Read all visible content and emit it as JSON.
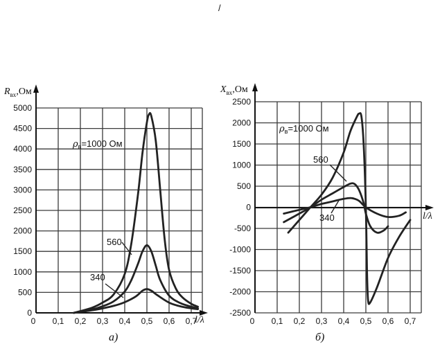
{
  "stray_mark": "/",
  "chart_data": [
    {
      "type": "line",
      "caption": "а)",
      "ylabel": "R",
      "ylabel_sub": "вх",
      "ylabel_unit": ",Ом",
      "xlabel": "l/λ",
      "xlim": [
        0,
        0.75
      ],
      "ylim": [
        0,
        5000
      ],
      "x_ticks": [
        "0",
        "0,1",
        "0,2",
        "0,3",
        "0,4",
        "0,5",
        "0,6",
        "0,7"
      ],
      "y_ticks": [
        "0",
        "500",
        "1000",
        "1500",
        "2000",
        "2500",
        "3000",
        "3500",
        "4000",
        "4500",
        "5000"
      ],
      "grid": true,
      "annotations": [
        {
          "text_rho": "ρ",
          "text_sub": "в",
          "text": "=1000 Ом",
          "series": "1000"
        },
        {
          "text": "560",
          "series": "560"
        },
        {
          "text": "340",
          "series": "340"
        }
      ],
      "series": [
        {
          "name": "ρв=1000 Ом",
          "key": "1000",
          "x": [
            0.17,
            0.25,
            0.3,
            0.35,
            0.4,
            0.43,
            0.46,
            0.48,
            0.5,
            0.51,
            0.52,
            0.54,
            0.56,
            0.58,
            0.6,
            0.63,
            0.66,
            0.7,
            0.73
          ],
          "y": [
            0,
            120,
            250,
            450,
            950,
            1700,
            2900,
            3900,
            4650,
            4850,
            4800,
            4200,
            3000,
            1800,
            1050,
            600,
            380,
            220,
            150
          ]
        },
        {
          "name": "560",
          "key": "560",
          "x": [
            0.17,
            0.25,
            0.3,
            0.35,
            0.4,
            0.43,
            0.46,
            0.48,
            0.5,
            0.52,
            0.54,
            0.56,
            0.6,
            0.65,
            0.7,
            0.73
          ],
          "y": [
            0,
            80,
            160,
            280,
            520,
            800,
            1200,
            1500,
            1650,
            1500,
            1150,
            800,
            420,
            240,
            150,
            110
          ]
        },
        {
          "name": "340",
          "key": "340",
          "x": [
            0.17,
            0.25,
            0.3,
            0.35,
            0.4,
            0.45,
            0.48,
            0.5,
            0.52,
            0.55,
            0.6,
            0.65,
            0.7,
            0.73
          ],
          "y": [
            0,
            60,
            110,
            170,
            260,
            400,
            540,
            580,
            540,
            420,
            250,
            160,
            110,
            90
          ]
        }
      ]
    },
    {
      "type": "line",
      "caption": "б)",
      "ylabel": "X",
      "ylabel_sub": "вх",
      "ylabel_unit": ",Ом",
      "xlabel": "l/λ",
      "xlim": [
        0,
        0.75
      ],
      "ylim": [
        -2500,
        2500
      ],
      "x_ticks": [
        "0",
        "0,1",
        "0,2",
        "0,3",
        "0,4",
        "0,5",
        "0,6",
        "0,7"
      ],
      "y_ticks": [
        "-2500",
        "-2000",
        "-1500",
        "-1000",
        "-500",
        "0",
        "500",
        "1000",
        "1500",
        "2000",
        "2500"
      ],
      "grid": true,
      "annotations": [
        {
          "text_rho": "ρ",
          "text_sub": "в",
          "text": "=1000 Ом",
          "series": "1000"
        },
        {
          "text": "560",
          "series": "560"
        },
        {
          "text": "340",
          "series": "340"
        }
      ],
      "series": [
        {
          "name": "ρв=1000 Ом",
          "key": "1000",
          "x": [
            0.15,
            0.2,
            0.25,
            0.3,
            0.35,
            0.4,
            0.43,
            0.46,
            0.47,
            0.48,
            0.49,
            0.5,
            0.505,
            0.51,
            0.52,
            0.55,
            0.6,
            0.65,
            0.7
          ],
          "y": [
            -600,
            -300,
            0,
            300,
            700,
            1300,
            1800,
            2150,
            2220,
            2150,
            1500,
            0,
            -1500,
            -2200,
            -2250,
            -1900,
            -1200,
            -700,
            -300
          ]
        },
        {
          "name": "560",
          "key": "560",
          "x": [
            0.13,
            0.2,
            0.25,
            0.3,
            0.35,
            0.4,
            0.43,
            0.45,
            0.47,
            0.49,
            0.5,
            0.52,
            0.55,
            0.58,
            0.6
          ],
          "y": [
            -350,
            -150,
            0,
            180,
            330,
            480,
            560,
            550,
            400,
            100,
            -150,
            -450,
            -600,
            -550,
            -450
          ]
        },
        {
          "name": "340",
          "key": "340",
          "x": [
            0.13,
            0.2,
            0.25,
            0.3,
            0.35,
            0.4,
            0.43,
            0.45,
            0.47,
            0.5,
            0.55,
            0.6,
            0.65,
            0.68
          ],
          "y": [
            -150,
            -60,
            0,
            80,
            140,
            200,
            220,
            200,
            150,
            0,
            -150,
            -230,
            -200,
            -120
          ]
        }
      ]
    }
  ]
}
